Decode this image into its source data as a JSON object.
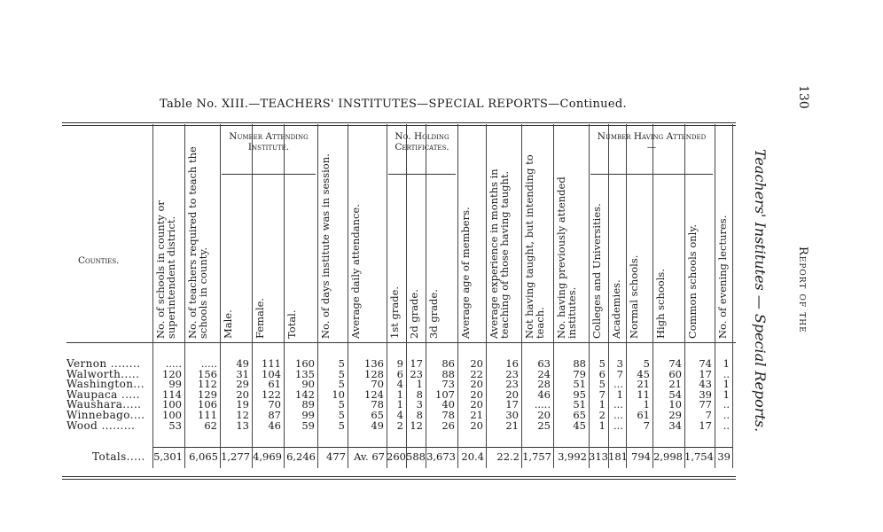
{
  "page_number": "130",
  "running_head": "Report of the",
  "section_title": "Teachers' Institutes — Special Reports.",
  "table_title": "Table No. XIII.—TEACHERS' INSTITUTES—SPECIAL REPORTS—Continued.",
  "counties_header": "Counties.",
  "groups": {
    "attending": "Number Attending Institute.",
    "certificates": "No. Holding Certificates.",
    "attended": "Number Having Attended —"
  },
  "columns": [
    "No. of schools in county or superintendent district.",
    "No. of teachers required to teach the schools in county.",
    "Male.",
    "Female.",
    "Total.",
    "No. of days institute was in session.",
    "Average daily attendance.",
    "1st grade.",
    "2d grade.",
    "3d grade.",
    "Average age of members.",
    "Average experience in months in teaching of those having taught.",
    "Not having taught, but intending to teach.",
    "No. having previously attended institutes.",
    "Colleges and Universities.",
    "Academies.",
    "Normal schools.",
    "High schools.",
    "Common schools only.",
    "No. of evening lectures."
  ],
  "rows": [
    {
      "county": "Vernon ........",
      "values": [
        ".....",
        ".....",
        "49",
        "111",
        "160",
        "5",
        "136",
        "9",
        "17",
        "86",
        "20",
        "16",
        "63",
        "88",
        "5",
        "3",
        "5",
        "74",
        "74",
        "1"
      ]
    },
    {
      "county": "Walworth.....",
      "values": [
        "120",
        "156",
        "31",
        "104",
        "135",
        "5",
        "128",
        "6",
        "23",
        "88",
        "22",
        "23",
        "24",
        "79",
        "6",
        "7",
        "45",
        "60",
        "17",
        ".."
      ]
    },
    {
      "county": "Washington...",
      "values": [
        "99",
        "112",
        "29",
        "61",
        "90",
        "5",
        "70",
        "4",
        "1",
        "73",
        "20",
        "23",
        "28",
        "51",
        "5",
        "...",
        "21",
        "21",
        "43",
        "1"
      ]
    },
    {
      "county": "Waupaca .....",
      "values": [
        "114",
        "129",
        "20",
        "122",
        "142",
        "10",
        "124",
        "1",
        "8",
        "107",
        "20",
        "20",
        "46",
        "95",
        "7",
        "1",
        "11",
        "54",
        "39",
        "1"
      ]
    },
    {
      "county": "Waushara.....",
      "values": [
        "100",
        "106",
        "19",
        "70",
        "89",
        "5",
        "78",
        "1",
        "3",
        "40",
        "20",
        "17",
        ".....",
        "51",
        "1",
        "...",
        "1",
        "10",
        "77",
        ".."
      ]
    },
    {
      "county": "Winnebago....",
      "values": [
        "100",
        "111",
        "12",
        "87",
        "99",
        "5",
        "65",
        "4",
        "8",
        "78",
        "21",
        "30",
        "20",
        "65",
        "2",
        "...",
        "61",
        "29",
        "7",
        ".."
      ]
    },
    {
      "county": "Wood .........",
      "values": [
        "53",
        "62",
        "13",
        "46",
        "59",
        "5",
        "49",
        "2",
        "12",
        "26",
        "20",
        "21",
        "25",
        "45",
        "1",
        "...",
        "7",
        "34",
        "17",
        ".."
      ]
    }
  ],
  "totals": {
    "label": "Totals.....",
    "values": [
      "5,301",
      "6,065",
      "1,277",
      "4,969",
      "6,246",
      "477",
      "Av. 67",
      "260",
      "588",
      "3,673",
      "20.4",
      "22.2",
      "1,757",
      "3,992",
      "313",
      "181",
      "794",
      "2,998",
      "1,754",
      "39"
    ]
  }
}
